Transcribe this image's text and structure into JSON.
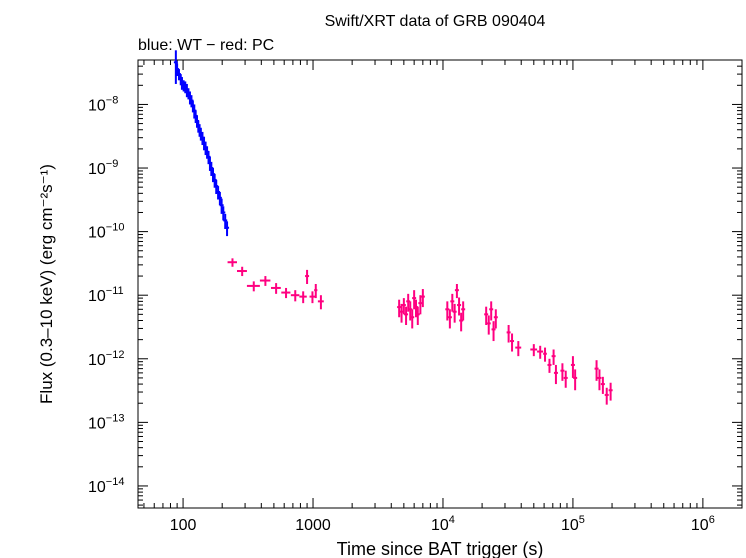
{
  "chart_data": {
    "type": "scatter",
    "title": "Swift/XRT data of GRB 090404",
    "subtitle": "blue: WT − red: PC",
    "xlabel": "Time since BAT trigger (s)",
    "ylabel": "Flux (0.3–10 keV) (erg cm⁻²s⁻¹)",
    "xscale": "log",
    "yscale": "log",
    "xlim": [
      45,
      2000000
    ],
    "ylim": [
      4.5e-15,
      5e-08
    ],
    "xticks": [
      {
        "value": 100,
        "label": "100"
      },
      {
        "value": 1000,
        "label": "1000"
      },
      {
        "value": 10000,
        "base": "10",
        "exp": "4"
      },
      {
        "value": 100000,
        "base": "10",
        "exp": "5"
      },
      {
        "value": 1000000,
        "base": "10",
        "exp": "6"
      }
    ],
    "yticks": [
      {
        "value": 1e-08,
        "base": "10",
        "exp": "−8"
      },
      {
        "value": 1e-09,
        "base": "10",
        "exp": "−9"
      },
      {
        "value": 1e-10,
        "base": "10",
        "exp": "−10"
      },
      {
        "value": 1e-11,
        "base": "10",
        "exp": "−11"
      },
      {
        "value": 1e-12,
        "base": "10",
        "exp": "−12"
      },
      {
        "value": 1e-13,
        "base": "10",
        "exp": "−13"
      },
      {
        "value": 1e-14,
        "base": "10",
        "exp": "−14"
      }
    ],
    "series": [
      {
        "mode": "WT",
        "color": "#0000ff",
        "points": [
          [
            88,
            4.6e-08,
            2.5e-08
          ],
          [
            90,
            3.6e-08,
            8e-09
          ],
          [
            93,
            3e-08,
            6e-09
          ],
          [
            96,
            2.5e-08,
            5e-09
          ],
          [
            98,
            2.2e-08,
            5e-09
          ],
          [
            101,
            2e-08,
            4e-09
          ],
          [
            104,
            1.9e-08,
            4e-09
          ],
          [
            107,
            1.7e-08,
            4e-09
          ],
          [
            110,
            1.5e-08,
            3e-09
          ],
          [
            113,
            1.3e-08,
            3e-09
          ],
          [
            116,
            1.15e-08,
            2.5e-09
          ],
          [
            119,
            9.5e-09,
            2e-09
          ],
          [
            122,
            8e-09,
            2e-09
          ],
          [
            125,
            6.6e-09,
            1.5e-09
          ],
          [
            128,
            5.5e-09,
            1.2e-09
          ],
          [
            131,
            4.6e-09,
            1e-09
          ],
          [
            134,
            4e-09,
            9e-10
          ],
          [
            137,
            3.5e-09,
            8e-10
          ],
          [
            141,
            3e-09,
            7e-10
          ],
          [
            145,
            2.5e-09,
            6e-10
          ],
          [
            149,
            2.1e-09,
            5e-10
          ],
          [
            153,
            1.8e-09,
            4e-10
          ],
          [
            157,
            1.5e-09,
            3.5e-10
          ],
          [
            161,
            1.2e-09,
            3e-10
          ],
          [
            165,
            1e-09,
            2.5e-10
          ],
          [
            170,
            8e-10,
            2e-10
          ],
          [
            175,
            6.5e-10,
            1.6e-10
          ],
          [
            180,
            5.2e-10,
            1.3e-10
          ],
          [
            186,
            4.2e-10,
            1e-10
          ],
          [
            192,
            3.4e-10,
            8e-11
          ],
          [
            198,
            2.6e-10,
            7e-11
          ],
          [
            204,
            2e-10,
            5e-11
          ],
          [
            211,
            1.5e-10,
            4e-11
          ],
          [
            218,
            1.15e-10,
            3e-11
          ]
        ]
      },
      {
        "mode": "PC",
        "color": "#ff0080",
        "points": [
          [
            240,
            3.3e-11,
            5e-12,
            20
          ],
          [
            285,
            2.4e-11,
            4e-12,
            25
          ],
          [
            350,
            1.4e-11,
            2.5e-12,
            40
          ],
          [
            430,
            1.7e-11,
            3e-12,
            40
          ],
          [
            520,
            1.3e-11,
            2.5e-12,
            45
          ],
          [
            620,
            1.1e-11,
            2e-12,
            50
          ],
          [
            730,
            1e-11,
            2e-12,
            55
          ],
          [
            840,
            9.5e-12,
            2e-12,
            55
          ],
          [
            900,
            2e-11,
            5e-12,
            15
          ],
          [
            990,
            9.5e-12,
            2e-12,
            50
          ],
          [
            1050,
            1.2e-11,
            3e-12,
            30
          ],
          [
            1150,
            8e-12,
            2e-12,
            60
          ],
          [
            4600,
            6.5e-12,
            2e-12,
            120
          ],
          [
            4800,
            5.5e-12,
            1.8e-12,
            120
          ],
          [
            5000,
            7e-12,
            2e-12,
            120
          ],
          [
            5200,
            5e-12,
            1.6e-12,
            120
          ],
          [
            5400,
            8e-12,
            2.5e-12,
            120
          ],
          [
            5600,
            6e-12,
            2e-12,
            120
          ],
          [
            5800,
            4.5e-12,
            1.5e-12,
            120
          ],
          [
            6000,
            9e-12,
            3e-12,
            120
          ],
          [
            6200,
            6.5e-12,
            2e-12,
            120
          ],
          [
            6400,
            5e-12,
            1.6e-12,
            120
          ],
          [
            6700,
            7.5e-12,
            2.5e-12,
            150
          ],
          [
            7000,
            9.5e-12,
            3e-12,
            150
          ],
          [
            10800,
            6e-12,
            2e-12,
            200
          ],
          [
            11300,
            4.5e-12,
            1.5e-12,
            200
          ],
          [
            11800,
            8e-12,
            2.5e-12,
            200
          ],
          [
            12300,
            5.5e-12,
            1.8e-12,
            200
          ],
          [
            12800,
            1.2e-11,
            3e-12,
            200
          ],
          [
            13300,
            7e-12,
            2.2e-12,
            200
          ],
          [
            13800,
            4e-12,
            1.3e-12,
            200
          ],
          [
            14300,
            6e-12,
            2e-12,
            200
          ],
          [
            21500,
            5e-12,
            1.6e-12,
            300
          ],
          [
            22500,
            3.6e-12,
            1.2e-12,
            300
          ],
          [
            23500,
            6e-12,
            2e-12,
            300
          ],
          [
            24500,
            2.9e-12,
            1e-12,
            300
          ],
          [
            25500,
            4.5e-12,
            1.5e-12,
            300
          ],
          [
            32000,
            2.6e-12,
            8e-13,
            400
          ],
          [
            34000,
            1.9e-12,
            6e-13,
            400
          ],
          [
            38000,
            1.5e-12,
            4e-13,
            2000
          ],
          [
            50000,
            1.4e-12,
            3e-13,
            3000
          ],
          [
            56000,
            1.3e-12,
            3e-13,
            3000
          ],
          [
            61000,
            1.2e-12,
            3e-13,
            2000
          ],
          [
            66000,
            8e-13,
            2e-13,
            1500
          ],
          [
            71000,
            1.1e-12,
            3e-13,
            1500
          ],
          [
            74000,
            6e-13,
            2e-13,
            1500
          ],
          [
            83000,
            6.5e-13,
            2e-13,
            2000
          ],
          [
            88000,
            5e-13,
            1.5e-13,
            2000
          ],
          [
            100000,
            8e-13,
            3e-13,
            2000
          ],
          [
            104000,
            5e-13,
            1.8e-13,
            2000
          ],
          [
            152000,
            7e-13,
            2.5e-13,
            3000
          ],
          [
            160000,
            5e-13,
            1.8e-13,
            3000
          ],
          [
            170000,
            4e-13,
            1.2e-13,
            3000
          ],
          [
            182000,
            2.7e-13,
            8e-14,
            3000
          ],
          [
            195000,
            3.2e-13,
            1e-13,
            3000
          ]
        ]
      }
    ]
  }
}
